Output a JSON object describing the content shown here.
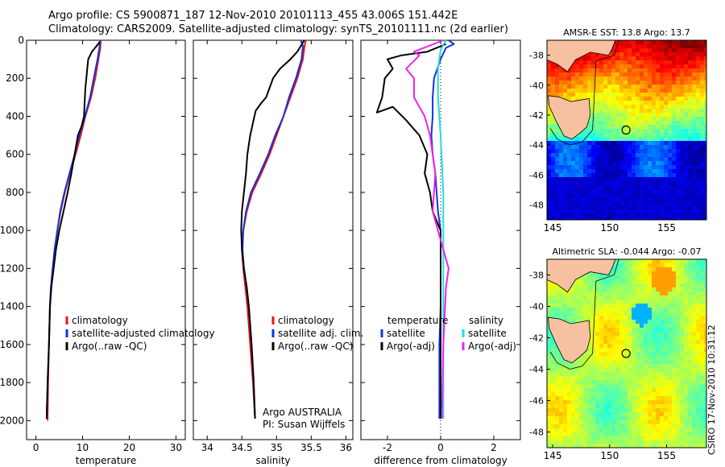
{
  "header": {
    "line1": "Argo profile: CS 5900871_187 12-Nov-2010 20101113_455 43.006S 151.442E",
    "line2": "Climatology: CARS2009. Satellite-adjusted climatology: synTS_20101111.nc (2d earlier)"
  },
  "side_text": "CSIRO 17-Nov-2010 10:31:12",
  "colors": {
    "climatology": "#ee1111",
    "satellite": "#1133dd",
    "argo": "#000000",
    "cyan": "#22dddd",
    "magenta": "#ee22ee",
    "land": "#f7c0a0"
  },
  "chart_data": [
    {
      "id": "temperature",
      "type": "line",
      "xlabel": "temperature",
      "ylabel": "",
      "xlim": [
        -2,
        32
      ],
      "ylim": [
        2100,
        0
      ],
      "xticks": [
        "0",
        "10",
        "20",
        "30"
      ],
      "yticks": [
        "0",
        "200",
        "400",
        "600",
        "800",
        "1000",
        "1200",
        "1400",
        "1600",
        "1800",
        "2000"
      ],
      "legend": [
        "climatology",
        "satellite-adjusted climatology",
        "Argo(..raw -QC)"
      ],
      "series": [
        {
          "name": "climatology",
          "color": "#ee1111",
          "points": [
            [
              13.9,
              0
            ],
            [
              13.8,
              40
            ],
            [
              13.4,
              100
            ],
            [
              12.7,
              200
            ],
            [
              11.8,
              300
            ],
            [
              10.6,
              400
            ],
            [
              9.6,
              500
            ],
            [
              8.5,
              600
            ],
            [
              7.3,
              700
            ],
            [
              6.2,
              800
            ],
            [
              5.3,
              900
            ],
            [
              4.6,
              1000
            ],
            [
              4.0,
              1100
            ],
            [
              3.6,
              1200
            ],
            [
              3.3,
              1300
            ],
            [
              3.0,
              1400
            ],
            [
              2.8,
              1600
            ],
            [
              2.6,
              1800
            ],
            [
              2.5,
              2000
            ]
          ]
        },
        {
          "name": "satellite-adjusted climatology",
          "color": "#1133dd",
          "points": [
            [
              13.7,
              0
            ],
            [
              13.6,
              40
            ],
            [
              13.2,
              100
            ],
            [
              12.4,
              200
            ],
            [
              11.6,
              300
            ],
            [
              10.5,
              400
            ],
            [
              9.3,
              500
            ],
            [
              8.3,
              600
            ],
            [
              7.2,
              700
            ],
            [
              6.1,
              800
            ],
            [
              5.2,
              900
            ],
            [
              4.6,
              1000
            ],
            [
              4.0,
              1100
            ],
            [
              3.6,
              1200
            ],
            [
              3.2,
              1300
            ],
            [
              3.0,
              1400
            ],
            [
              2.8,
              1600
            ],
            [
              2.5,
              1800
            ],
            [
              2.3,
              1990
            ]
          ]
        },
        {
          "name": "Argo(..raw -QC)",
          "color": "#000000",
          "points": [
            [
              13.6,
              10
            ],
            [
              13.0,
              30
            ],
            [
              12.0,
              60
            ],
            [
              11.2,
              100
            ],
            [
              11.0,
              150
            ],
            [
              10.8,
              200
            ],
            [
              10.6,
              250
            ],
            [
              10.5,
              300
            ],
            [
              10.4,
              350
            ],
            [
              10.3,
              400
            ],
            [
              9.8,
              450
            ],
            [
              9.0,
              500
            ],
            [
              8.3,
              600
            ],
            [
              7.6,
              700
            ],
            [
              6.8,
              800
            ],
            [
              5.9,
              900
            ],
            [
              5.0,
              1000
            ],
            [
              4.3,
              1100
            ],
            [
              3.8,
              1200
            ],
            [
              3.3,
              1300
            ],
            [
              3.0,
              1400
            ],
            [
              2.8,
              1600
            ],
            [
              2.5,
              1800
            ],
            [
              2.3,
              1990
            ]
          ]
        }
      ]
    },
    {
      "id": "salinity",
      "type": "line",
      "xlabel": "salinity",
      "ylabel": "",
      "xlim": [
        33.8,
        36.1
      ],
      "ylim": [
        2100,
        0
      ],
      "xticks": [
        "34",
        "34.5",
        "35",
        "35.5",
        "36"
      ],
      "yticks": [],
      "legend": [
        "climatology",
        "satellite adj. clim.",
        "Argo(..raw -QC)"
      ],
      "annotation": [
        "Argo AUSTRALIA",
        "PI: Susan Wijffels"
      ],
      "series": [
        {
          "name": "climatology",
          "color": "#ee1111",
          "points": [
            [
              35.42,
              0
            ],
            [
              35.4,
              40
            ],
            [
              35.38,
              100
            ],
            [
              35.3,
              200
            ],
            [
              35.2,
              300
            ],
            [
              35.1,
              400
            ],
            [
              35.0,
              500
            ],
            [
              34.9,
              600
            ],
            [
              34.78,
              700
            ],
            [
              34.65,
              800
            ],
            [
              34.57,
              900
            ],
            [
              34.52,
              1000
            ],
            [
              34.5,
              1100
            ],
            [
              34.52,
              1200
            ],
            [
              34.55,
              1300
            ],
            [
              34.58,
              1400
            ],
            [
              34.62,
              1600
            ],
            [
              34.66,
              1800
            ],
            [
              34.69,
              1990
            ]
          ]
        },
        {
          "name": "satellite adj. clim.",
          "color": "#1133dd",
          "points": [
            [
              35.35,
              0
            ],
            [
              35.38,
              30
            ],
            [
              35.36,
              100
            ],
            [
              35.28,
              200
            ],
            [
              35.18,
              300
            ],
            [
              35.1,
              400
            ],
            [
              34.98,
              500
            ],
            [
              34.88,
              600
            ],
            [
              34.76,
              700
            ],
            [
              34.63,
              800
            ],
            [
              34.56,
              900
            ],
            [
              34.52,
              1000
            ],
            [
              34.51,
              1100
            ],
            [
              34.53,
              1200
            ],
            [
              34.57,
              1300
            ],
            [
              34.6,
              1400
            ],
            [
              34.64,
              1600
            ],
            [
              34.67,
              1800
            ],
            [
              34.69,
              1990
            ]
          ]
        },
        {
          "name": "Argo(..raw -QC)",
          "color": "#000000",
          "points": [
            [
              35.4,
              0
            ],
            [
              35.3,
              60
            ],
            [
              35.2,
              100
            ],
            [
              35.05,
              150
            ],
            [
              34.95,
              200
            ],
            [
              34.9,
              250
            ],
            [
              34.85,
              300
            ],
            [
              34.78,
              330
            ],
            [
              34.7,
              370
            ],
            [
              34.68,
              400
            ],
            [
              34.62,
              500
            ],
            [
              34.58,
              600
            ],
            [
              34.56,
              700
            ],
            [
              34.53,
              800
            ],
            [
              34.5,
              900
            ],
            [
              34.49,
              1000
            ],
            [
              34.5,
              1100
            ],
            [
              34.53,
              1200
            ],
            [
              34.57,
              1300
            ],
            [
              34.6,
              1400
            ],
            [
              34.64,
              1600
            ],
            [
              34.67,
              1800
            ],
            [
              34.69,
              1990
            ]
          ]
        }
      ]
    },
    {
      "id": "difference",
      "type": "line",
      "xlabel": "difference from climatology",
      "ylabel": "",
      "xlim": [
        -3.0,
        3.0
      ],
      "ylim": [
        2100,
        0
      ],
      "xticks": [
        "-2",
        "0",
        "2"
      ],
      "yticks": [],
      "legend_left_title": "temperature",
      "legend_right_title": "salinity",
      "legend_left": [
        "satellite",
        "Argo(-adj)"
      ],
      "legend_right": [
        "satellite",
        "Argo(-adj)"
      ],
      "series": [
        {
          "name": "temperature satellite",
          "color": "#1133dd",
          "points": [
            [
              0.3,
              0
            ],
            [
              0.5,
              20
            ],
            [
              0.2,
              40
            ],
            [
              0.0,
              100
            ],
            [
              -0.25,
              200
            ],
            [
              -0.3,
              300
            ],
            [
              -0.3,
              400
            ],
            [
              -0.35,
              500
            ],
            [
              -0.3,
              600
            ],
            [
              -0.2,
              700
            ],
            [
              -0.15,
              800
            ],
            [
              -0.1,
              900
            ],
            [
              0.0,
              1000
            ],
            [
              0.0,
              1200
            ],
            [
              0.0,
              1400
            ],
            [
              -0.05,
              1600
            ],
            [
              -0.05,
              1800
            ],
            [
              -0.05,
              1990
            ]
          ]
        },
        {
          "name": "temperature Argo(-adj)",
          "color": "#000000",
          "points": [
            [
              0.2,
              20
            ],
            [
              -0.5,
              60
            ],
            [
              -1.5,
              80
            ],
            [
              -2.0,
              100
            ],
            [
              -1.8,
              150
            ],
            [
              -2.1,
              200
            ],
            [
              -2.2,
              300
            ],
            [
              -2.4,
              380
            ],
            [
              -1.8,
              350
            ],
            [
              -1.3,
              420
            ],
            [
              -0.8,
              500
            ],
            [
              -0.5,
              600
            ],
            [
              -0.6,
              700
            ],
            [
              -0.4,
              800
            ],
            [
              -0.3,
              900
            ],
            [
              0.0,
              1000
            ],
            [
              0.0,
              1200
            ],
            [
              0.0,
              1400
            ],
            [
              0.0,
              1600
            ],
            [
              0.0,
              1800
            ],
            [
              0.0,
              1990
            ]
          ]
        },
        {
          "name": "salinity satellite",
          "color": "#22dddd",
          "points": [
            [
              0.2,
              0
            ],
            [
              0.0,
              50
            ],
            [
              -0.1,
              150
            ],
            [
              -0.1,
              300
            ],
            [
              0.0,
              500
            ],
            [
              0.1,
              800
            ],
            [
              0.1,
              1200
            ],
            [
              0.1,
              1600
            ],
            [
              0.1,
              1990
            ]
          ]
        },
        {
          "name": "salinity Argo(-adj)",
          "color": "#ee22ee",
          "points": [
            [
              0.1,
              0
            ],
            [
              -1.0,
              60
            ],
            [
              -0.8,
              80
            ],
            [
              -1.3,
              150
            ],
            [
              -1.0,
              200
            ],
            [
              -1.0,
              300
            ],
            [
              -0.6,
              400
            ],
            [
              -0.4,
              500
            ],
            [
              -0.2,
              700
            ],
            [
              -0.3,
              900
            ],
            [
              -0.1,
              1000
            ],
            [
              0.1,
              1100
            ],
            [
              0.3,
              1200
            ],
            [
              0.2,
              1300
            ],
            [
              0.1,
              1600
            ],
            [
              0.05,
              1990
            ]
          ]
        }
      ]
    },
    {
      "id": "sst_map",
      "type": "heatmap",
      "title": "AMSR-E SST: 13.8 Argo: 13.7",
      "xlim": [
        144.5,
        158.5
      ],
      "ylim": [
        -49,
        -37
      ],
      "xticks": [
        "145",
        "150",
        "155"
      ],
      "yticks": [
        "-38",
        "-40",
        "-42",
        "-44",
        "-46",
        "-48"
      ],
      "marker": [
        151.44,
        -43.0
      ]
    },
    {
      "id": "sla_map",
      "type": "heatmap",
      "title": "Altimetric SLA: -0.044 Argo: -0.07",
      "xlim": [
        144.5,
        158.5
      ],
      "ylim": [
        -49,
        -37
      ],
      "xticks": [
        "145",
        "150",
        "155"
      ],
      "yticks": [
        "-38",
        "-40",
        "-42",
        "-44",
        "-46",
        "-48"
      ],
      "marker": [
        151.44,
        -43.0
      ]
    }
  ]
}
